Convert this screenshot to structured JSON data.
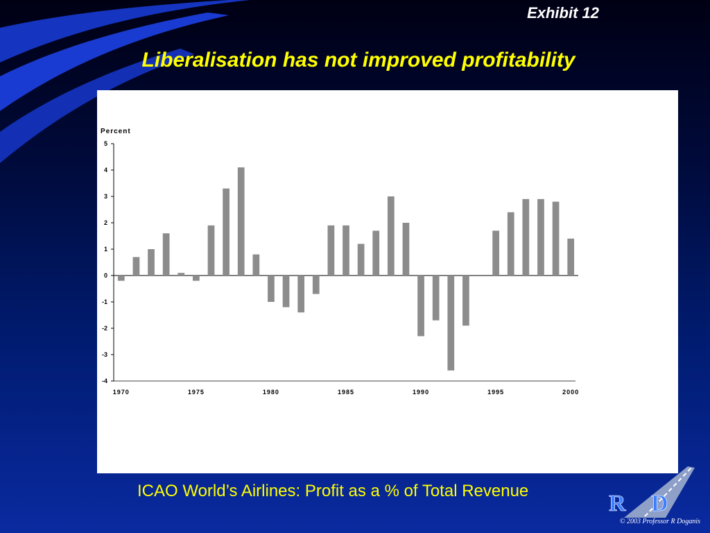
{
  "header": {
    "exhibit": "Exhibit 12",
    "title": "Liberalisation has not improved profitability"
  },
  "footer": {
    "caption": "ICAO World’s Airlines: Profit as a % of Total Revenue",
    "logo_text": "R D",
    "copyright": "© 2003 Professor R Doganis"
  },
  "colors": {
    "bar": "#8c8c8c",
    "title": "#ffff00",
    "swoosh": "#1a3bd1"
  },
  "chart_data": {
    "type": "bar",
    "ylabel": "Percent",
    "ylim": [
      -4,
      5
    ],
    "yticks": [
      5,
      4,
      3,
      2,
      1,
      0,
      -1,
      -2,
      -3,
      -4
    ],
    "xlim": [
      1970,
      2000
    ],
    "xticks": [
      1970,
      1975,
      1980,
      1985,
      1990,
      1995,
      2000
    ],
    "categories": [
      1970,
      1971,
      1972,
      1973,
      1974,
      1975,
      1976,
      1977,
      1978,
      1979,
      1980,
      1981,
      1982,
      1983,
      1984,
      1985,
      1986,
      1987,
      1988,
      1989,
      1990,
      1991,
      1992,
      1993,
      1994,
      1995,
      1996,
      1997,
      1998,
      1999,
      2000
    ],
    "values": [
      -0.2,
      0.7,
      1.0,
      1.6,
      0.1,
      -0.2,
      1.9,
      3.3,
      4.1,
      0.8,
      -1.0,
      -1.2,
      -1.4,
      -0.7,
      1.9,
      1.9,
      1.2,
      1.7,
      3.0,
      2.0,
      -2.3,
      -1.7,
      -3.6,
      -1.9,
      0.0,
      1.7,
      2.4,
      2.9,
      2.9,
      2.8,
      1.4
    ],
    "grid": false,
    "legend": "none"
  }
}
